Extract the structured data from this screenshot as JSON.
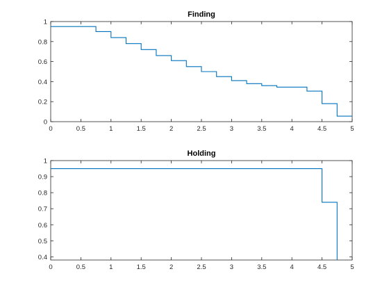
{
  "chart_data": [
    {
      "type": "line",
      "style": "step",
      "title": "Finding",
      "xlabel": "",
      "ylabel": "",
      "xlim": [
        0,
        5
      ],
      "ylim": [
        0,
        1
      ],
      "xticks": [
        0,
        0.5,
        1,
        1.5,
        2,
        2.5,
        3,
        3.5,
        4,
        4.5,
        5
      ],
      "yticks": [
        0,
        0.2,
        0.4,
        0.6,
        0.8,
        1
      ],
      "grid": false,
      "legend": "none",
      "series": [
        {
          "color": "#0072bd",
          "x": [
            0,
            0.75,
            1,
            1.25,
            1.5,
            1.75,
            2,
            2.25,
            2.5,
            2.75,
            3,
            3.25,
            3.5,
            3.75,
            4,
            4.25,
            4.5,
            4.75,
            5
          ],
          "y": [
            0.95,
            0.9,
            0.84,
            0.78,
            0.72,
            0.66,
            0.61,
            0.55,
            0.5,
            0.45,
            0.41,
            0.38,
            0.36,
            0.345,
            0.345,
            0.305,
            0.18,
            0.055,
            0.055
          ]
        }
      ]
    },
    {
      "type": "line",
      "style": "step",
      "title": "Holding",
      "xlabel": "",
      "ylabel": "",
      "xlim": [
        0,
        5
      ],
      "ylim": [
        0.38,
        1
      ],
      "xticks": [
        0,
        0.5,
        1,
        1.5,
        2,
        2.5,
        3,
        3.5,
        4,
        4.5,
        5
      ],
      "yticks": [
        0.4,
        0.5,
        0.6,
        0.7,
        0.8,
        0.9,
        1
      ],
      "grid": false,
      "legend": "none",
      "series": [
        {
          "color": "#0072bd",
          "x": [
            0,
            4.5,
            4.75,
            4.75
          ],
          "y": [
            0.95,
            0.74,
            0.74,
            0.38
          ]
        }
      ]
    }
  ]
}
